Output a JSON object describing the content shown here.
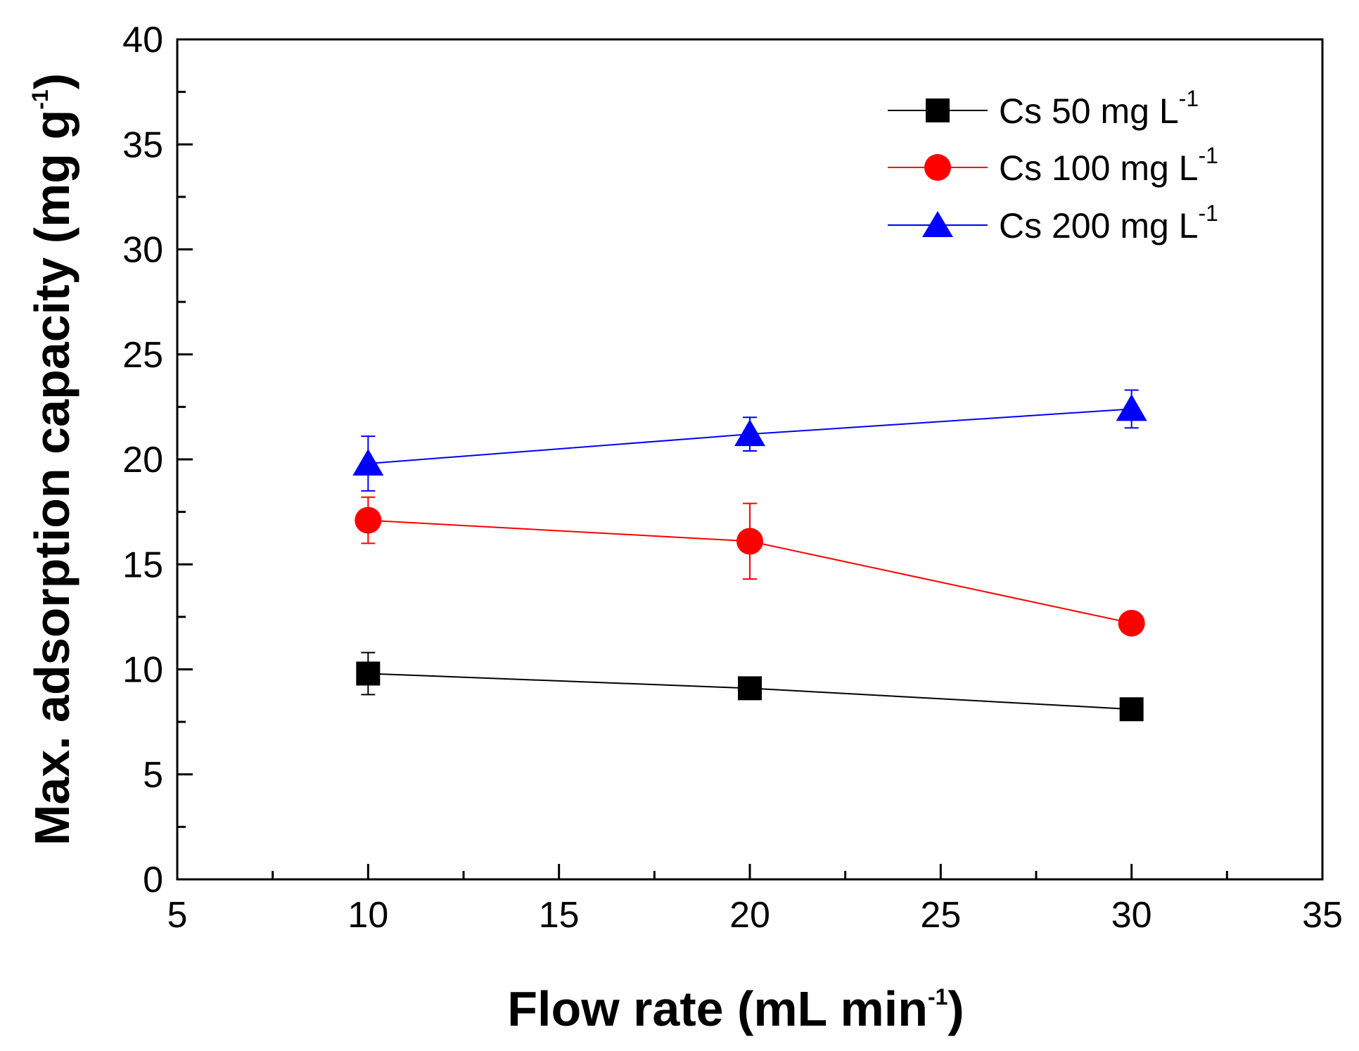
{
  "chart_data": {
    "type": "line",
    "title": "",
    "xlabel": "Flow rate (mL min-1)",
    "xlabel_main": "Flow rate (mL min",
    "xlabel_sup": "-1",
    "xlabel_close": ")",
    "ylabel": "Max. adsorption capacity (mg g-1)",
    "ylabel_main": "Max. adsorption capacity (mg g",
    "ylabel_sup": "-1",
    "ylabel_close": ")",
    "xlim": [
      5,
      35
    ],
    "ylim": [
      0,
      40
    ],
    "x_major_ticks": [
      5,
      10,
      15,
      20,
      25,
      30,
      35
    ],
    "x_minor_ticks": [
      7.5,
      12.5,
      17.5,
      22.5,
      27.5,
      32.5
    ],
    "y_major_ticks": [
      0,
      5,
      10,
      15,
      20,
      25,
      30,
      35,
      40
    ],
    "y_minor_ticks": [
      2.5,
      7.5,
      12.5,
      17.5,
      22.5,
      27.5,
      32.5,
      37.5
    ],
    "x_tick_labels": [
      "5",
      "10",
      "15",
      "20",
      "25",
      "30",
      "35"
    ],
    "y_tick_labels": [
      "0",
      "5",
      "10",
      "15",
      "20",
      "25",
      "30",
      "35",
      "40"
    ],
    "grid": false,
    "legend_position": "top-right",
    "x": [
      10,
      20,
      30
    ],
    "series": [
      {
        "name": "Cs 50 mg L-1",
        "label_main": "Cs 50 mg L",
        "label_sup": "-1",
        "color": "#000000",
        "marker": "square",
        "values": [
          9.8,
          9.1,
          8.1
        ],
        "errors": [
          1.0,
          0.3,
          0.3
        ]
      },
      {
        "name": "Cs 100 mg L-1",
        "label_main": "Cs 100 mg L",
        "label_sup": "-1",
        "color": "#ff0000",
        "marker": "circle",
        "values": [
          17.1,
          16.1,
          12.2
        ],
        "errors": [
          1.1,
          1.8,
          0.3
        ]
      },
      {
        "name": "Cs 200 mg L-1",
        "label_main": "Cs 200 mg L",
        "label_sup": "-1",
        "color": "#0000ff",
        "marker": "triangle",
        "values": [
          19.8,
          21.2,
          22.4
        ],
        "errors": [
          1.3,
          0.8,
          0.9
        ]
      }
    ]
  }
}
